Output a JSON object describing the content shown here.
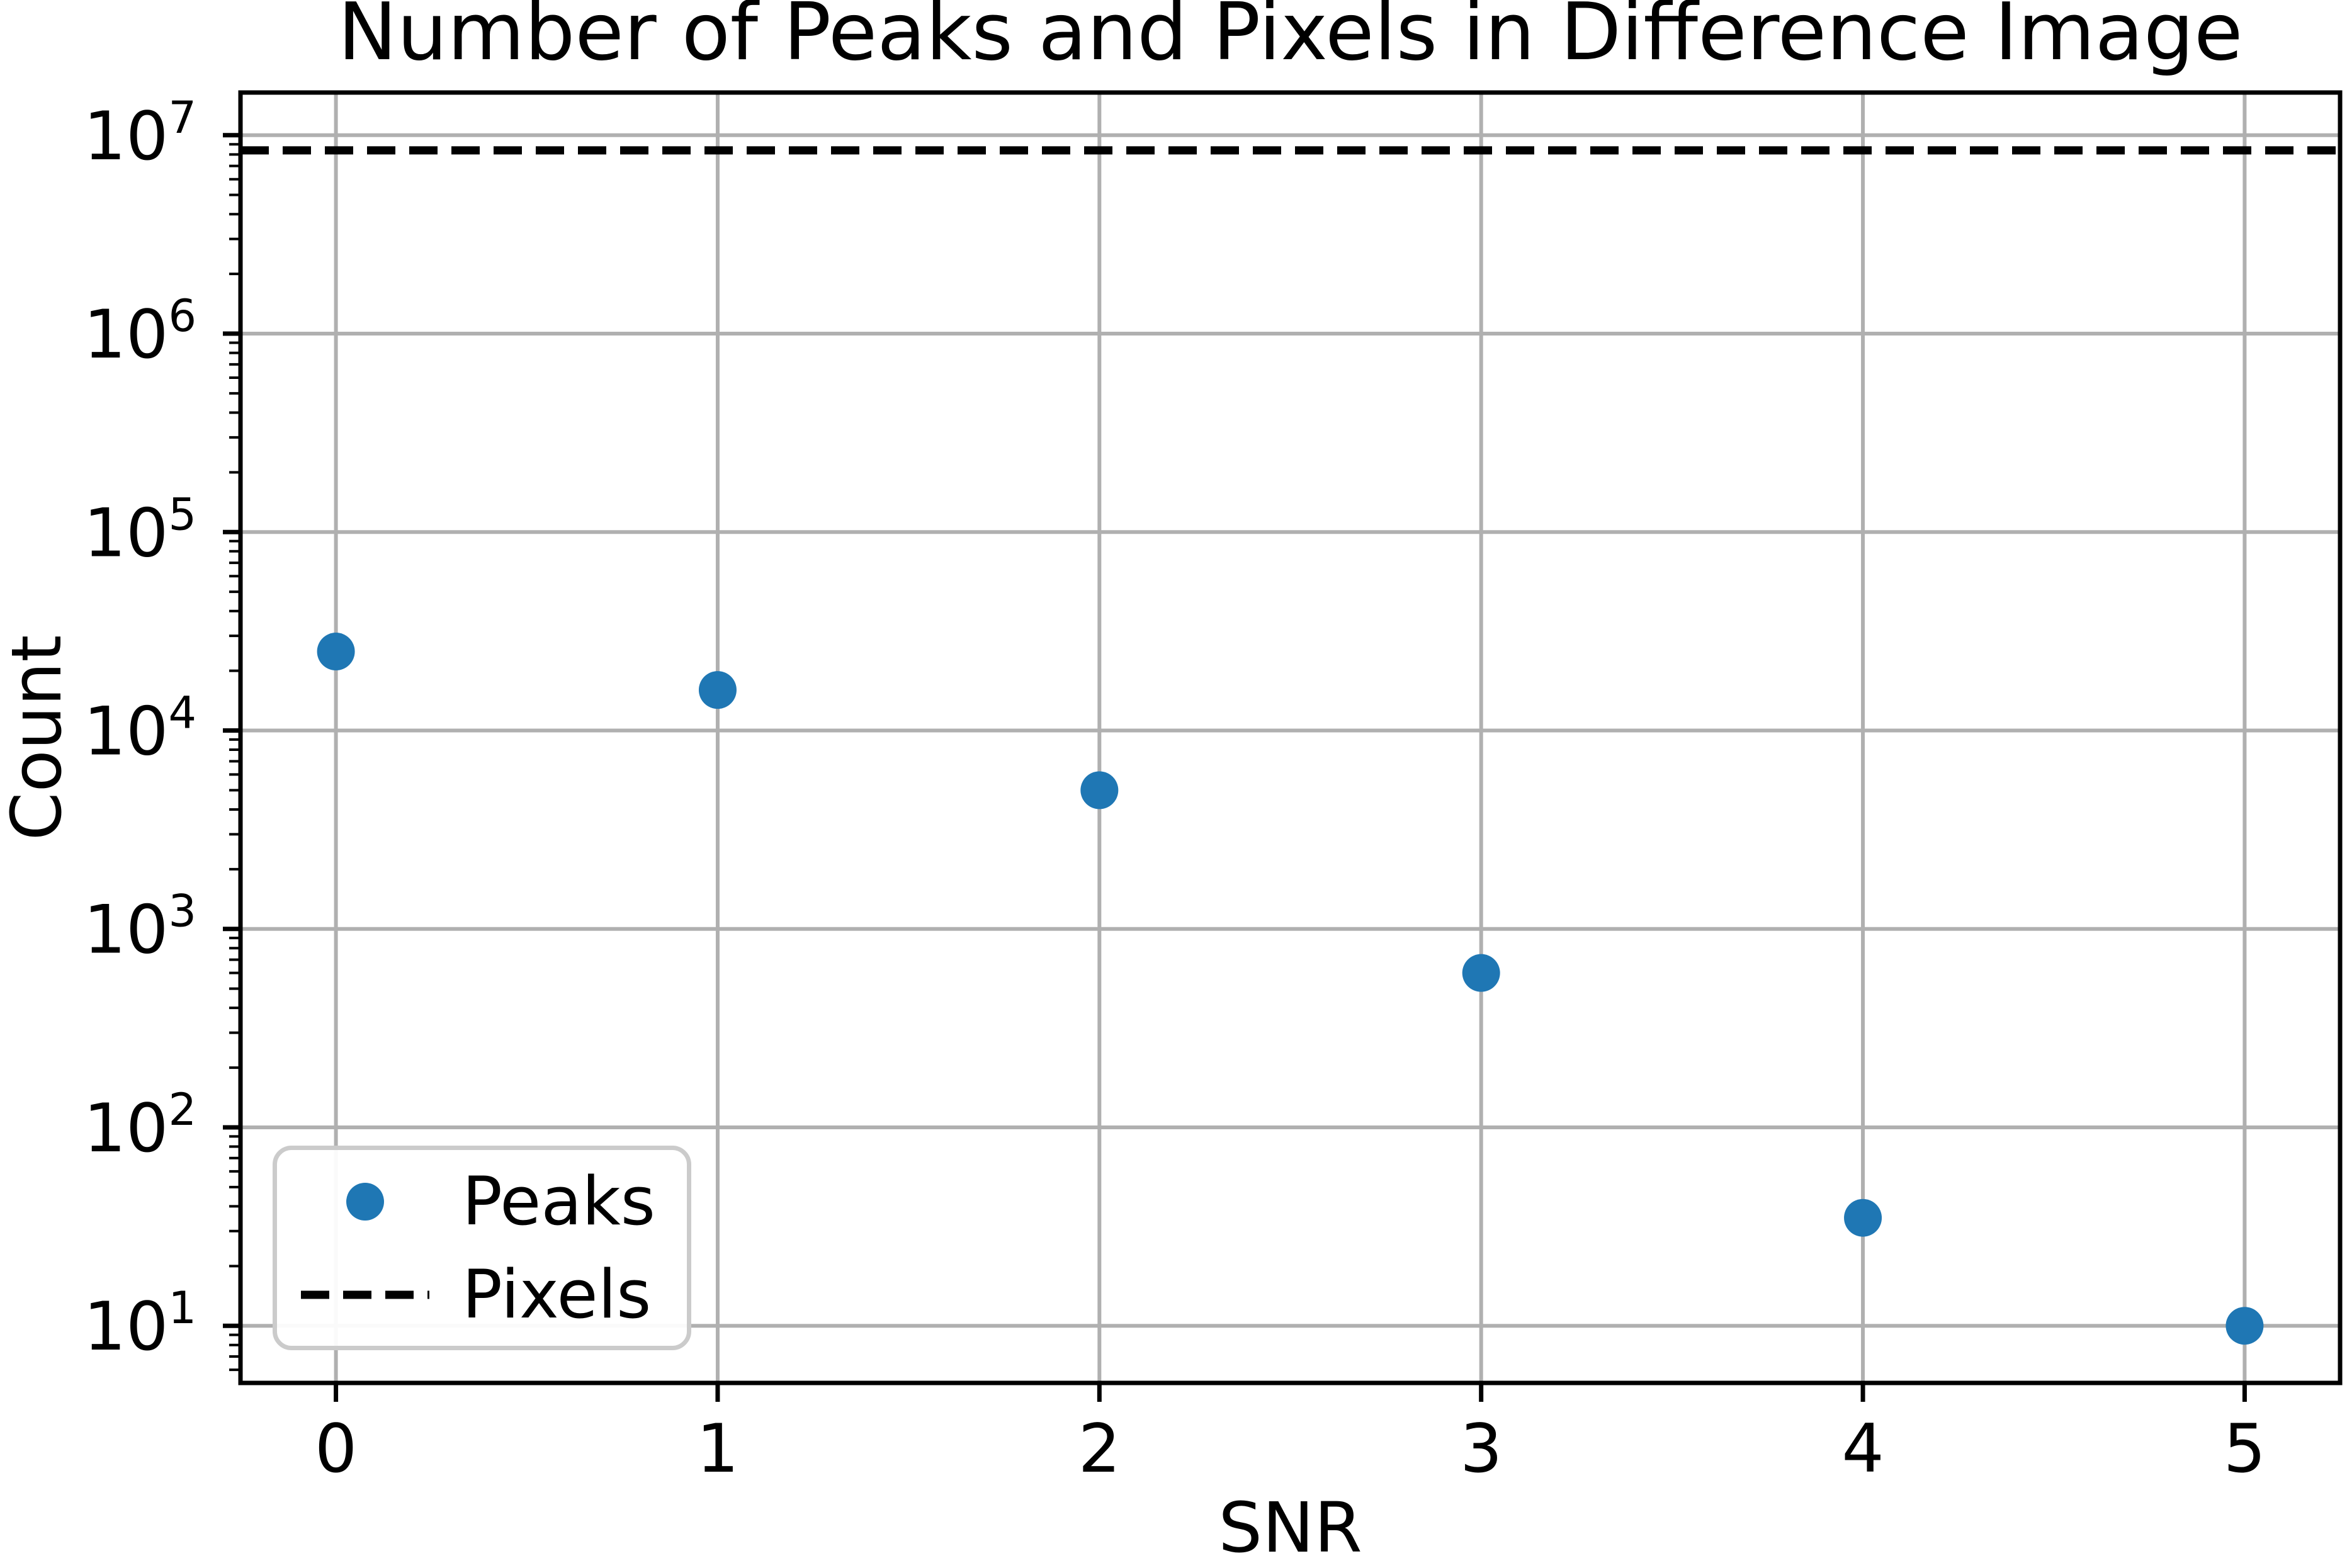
{
  "chart_data": {
    "type": "scatter",
    "title": "Number of Peaks and Pixels in Difference Image",
    "xlabel": "SNR",
    "ylabel": "Count",
    "y_scale": "log",
    "grid": true,
    "legend_position": "lower left",
    "x_ticks": [
      0,
      1,
      2,
      3,
      4,
      5
    ],
    "y_tick_exponents": [
      1,
      2,
      3,
      4,
      5,
      6,
      7
    ],
    "xlim": [
      -0.25,
      5.25
    ],
    "ylim_log10": [
      0.712,
      7.215
    ],
    "series": [
      {
        "name": "Peaks",
        "type": "scatter",
        "marker": "circle",
        "color": "#1f77b4",
        "x": [
          0,
          1,
          2,
          3,
          4,
          5
        ],
        "y": [
          25000,
          16000,
          5000,
          600,
          35,
          10
        ]
      },
      {
        "name": "Pixels",
        "type": "hline",
        "linestyle": "dashed",
        "color": "#000000",
        "y": 8388608
      }
    ]
  },
  "colors": {
    "accent": "#1f77b4",
    "grid": "#b0b0b0",
    "axis": "#000000",
    "legend_border": "#cbcbcb",
    "background": "#ffffff"
  }
}
